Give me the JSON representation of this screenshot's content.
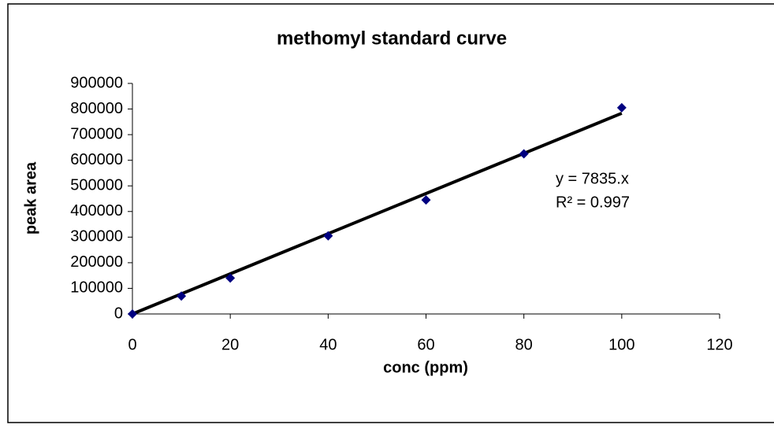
{
  "chart_data": {
    "type": "scatter",
    "title": "methomyl standard curve",
    "x_label": "conc (ppm)",
    "y_label": "peak area",
    "series": [
      {
        "name": "peak area",
        "color": "#000080",
        "x": [
          0,
          10,
          20,
          40,
          60,
          80,
          100
        ],
        "values": [
          0,
          70000,
          140000,
          305000,
          445000,
          625000,
          805000
        ]
      }
    ],
    "trendline": {
      "color": "#000000",
      "x": [
        0,
        100
      ],
      "values": [
        0,
        783500
      ]
    },
    "annotations": [
      "y = 7835.x",
      "R² = 0.997"
    ],
    "xlim": [
      0,
      120
    ],
    "xticks": [
      0,
      20,
      40,
      60,
      80,
      100,
      120
    ],
    "ylim": [
      0,
      900000
    ],
    "yticks": [
      0,
      100000,
      200000,
      300000,
      400000,
      500000,
      600000,
      700000,
      800000,
      900000
    ]
  }
}
